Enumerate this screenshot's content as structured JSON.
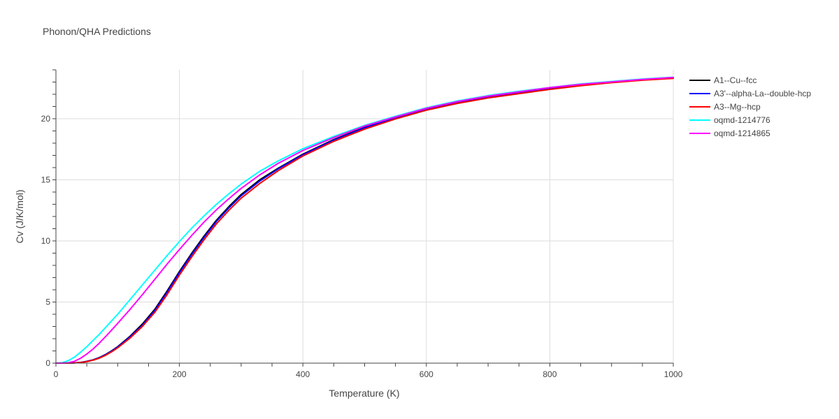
{
  "chart_data": {
    "type": "line",
    "title": "Phonon/QHA Predictions",
    "xlabel": "Temperature (K)",
    "ylabel": "Cv (J/K/mol)",
    "xlim": [
      0,
      1000
    ],
    "ylim": [
      0,
      24
    ],
    "x_ticks": [
      0,
      200,
      400,
      600,
      800,
      1000
    ],
    "y_ticks": [
      0,
      5,
      10,
      15,
      20
    ],
    "grid": true,
    "legend_position": "top-right",
    "x": [
      0,
      10,
      20,
      30,
      40,
      50,
      60,
      70,
      80,
      90,
      100,
      120,
      140,
      160,
      180,
      200,
      220,
      240,
      260,
      280,
      300,
      330,
      360,
      400,
      450,
      500,
      550,
      600,
      650,
      700,
      750,
      800,
      850,
      900,
      950,
      1000
    ],
    "series": [
      {
        "name": "A1--Cu--fcc",
        "color": "#000000",
        "values": [
          0,
          0.0,
          0.0,
          0.02,
          0.06,
          0.14,
          0.27,
          0.45,
          0.7,
          1.0,
          1.35,
          2.2,
          3.2,
          4.4,
          5.9,
          7.5,
          9.0,
          10.4,
          11.7,
          12.8,
          13.8,
          15.0,
          15.95,
          17.1,
          18.3,
          19.3,
          20.1,
          20.8,
          21.35,
          21.8,
          22.15,
          22.5,
          22.8,
          23.0,
          23.2,
          23.35
        ]
      },
      {
        "name": "A3'--alpha-La--double-hcp",
        "color": "#0000ff",
        "values": [
          0,
          0.0,
          0.0,
          0.02,
          0.06,
          0.14,
          0.26,
          0.44,
          0.68,
          0.98,
          1.32,
          2.15,
          3.1,
          4.3,
          5.8,
          7.4,
          8.9,
          10.3,
          11.6,
          12.7,
          13.7,
          14.9,
          15.9,
          17.05,
          18.25,
          19.25,
          20.05,
          20.75,
          21.3,
          21.75,
          22.1,
          22.45,
          22.75,
          22.98,
          23.18,
          23.33
        ]
      },
      {
        "name": "A3--Mg--hcp",
        "color": "#ff0000",
        "values": [
          0,
          0.0,
          0.0,
          0.02,
          0.05,
          0.12,
          0.24,
          0.4,
          0.63,
          0.92,
          1.25,
          2.05,
          3.0,
          4.15,
          5.6,
          7.2,
          8.7,
          10.1,
          11.4,
          12.5,
          13.5,
          14.7,
          15.75,
          16.95,
          18.15,
          19.15,
          19.98,
          20.7,
          21.25,
          21.7,
          22.05,
          22.4,
          22.7,
          22.95,
          23.15,
          23.3
        ]
      },
      {
        "name": "oqmd-1214776",
        "color": "#00ffff",
        "values": [
          0,
          0.03,
          0.2,
          0.5,
          0.9,
          1.35,
          1.85,
          2.35,
          2.9,
          3.45,
          4.0,
          5.2,
          6.4,
          7.6,
          8.8,
          9.95,
          11.05,
          12.05,
          13.0,
          13.85,
          14.65,
          15.7,
          16.55,
          17.55,
          18.55,
          19.45,
          20.2,
          20.9,
          21.45,
          21.9,
          22.25,
          22.55,
          22.85,
          23.05,
          23.25,
          23.4
        ]
      },
      {
        "name": "oqmd-1214865",
        "color": "#ff00ff",
        "values": [
          0,
          0.0,
          0.03,
          0.15,
          0.4,
          0.75,
          1.15,
          1.62,
          2.15,
          2.7,
          3.25,
          4.4,
          5.6,
          6.85,
          8.1,
          9.3,
          10.45,
          11.55,
          12.55,
          13.45,
          14.3,
          15.4,
          16.35,
          17.4,
          18.45,
          19.4,
          20.15,
          20.85,
          21.4,
          21.85,
          22.2,
          22.55,
          22.82,
          23.02,
          23.22,
          23.38
        ]
      }
    ]
  }
}
